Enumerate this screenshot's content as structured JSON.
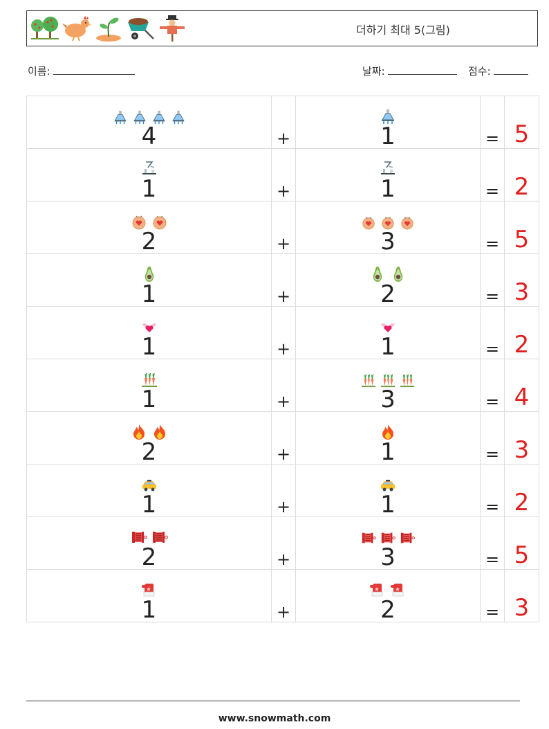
{
  "header": {
    "title": "더하기 최대 5(그림)",
    "icons": [
      "tree-icon",
      "hen-icon",
      "sprout-icon",
      "wheelbarrow-icon",
      "scarecrow-icon"
    ]
  },
  "meta": {
    "name_label": "이름:",
    "date_label": "날짜:",
    "score_label": "점수:"
  },
  "problems": [
    {
      "icon": "flask-icon",
      "a": 4,
      "b": 1,
      "op": "+",
      "eq": "=",
      "answer": 5
    },
    {
      "icon": "cooking-steam-icon",
      "a": 1,
      "b": 1,
      "op": "+",
      "eq": "=",
      "answer": 2
    },
    {
      "icon": "heart-cookie-icon",
      "a": 2,
      "b": 3,
      "op": "+",
      "eq": "=",
      "answer": 5
    },
    {
      "icon": "avocado-icon",
      "a": 1,
      "b": 2,
      "op": "+",
      "eq": "=",
      "answer": 3
    },
    {
      "icon": "winged-heart-icon",
      "a": 1,
      "b": 1,
      "op": "+",
      "eq": "=",
      "answer": 2
    },
    {
      "icon": "carrot-patch-icon",
      "a": 1,
      "b": 3,
      "op": "+",
      "eq": "=",
      "answer": 4
    },
    {
      "icon": "fire-icon",
      "a": 2,
      "b": 1,
      "op": "+",
      "eq": "=",
      "answer": 3
    },
    {
      "icon": "taxi-icon",
      "a": 1,
      "b": 1,
      "op": "+",
      "eq": "=",
      "answer": 2
    },
    {
      "icon": "fire-hose-reel-icon",
      "a": 2,
      "b": 3,
      "op": "+",
      "eq": "=",
      "answer": 5
    },
    {
      "icon": "mitten-icon",
      "a": 1,
      "b": 2,
      "op": "+",
      "eq": "=",
      "answer": 3
    }
  ],
  "colors": {
    "answer": "#e02020",
    "border": "#dcdcdc"
  },
  "footer": {
    "url": "www.snowmath.com"
  }
}
